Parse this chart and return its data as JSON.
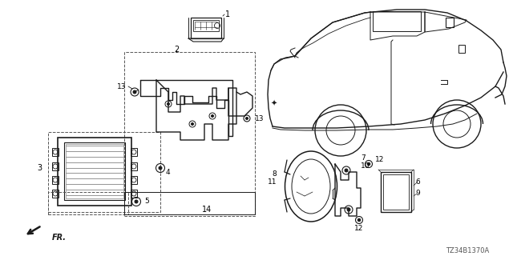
{
  "bg_color": "#ffffff",
  "line_color": "#1a1a1a",
  "dash_color": "#555555",
  "diagram_id": "TZ34B1370A",
  "figsize": [
    6.4,
    3.2
  ],
  "dpi": 100
}
